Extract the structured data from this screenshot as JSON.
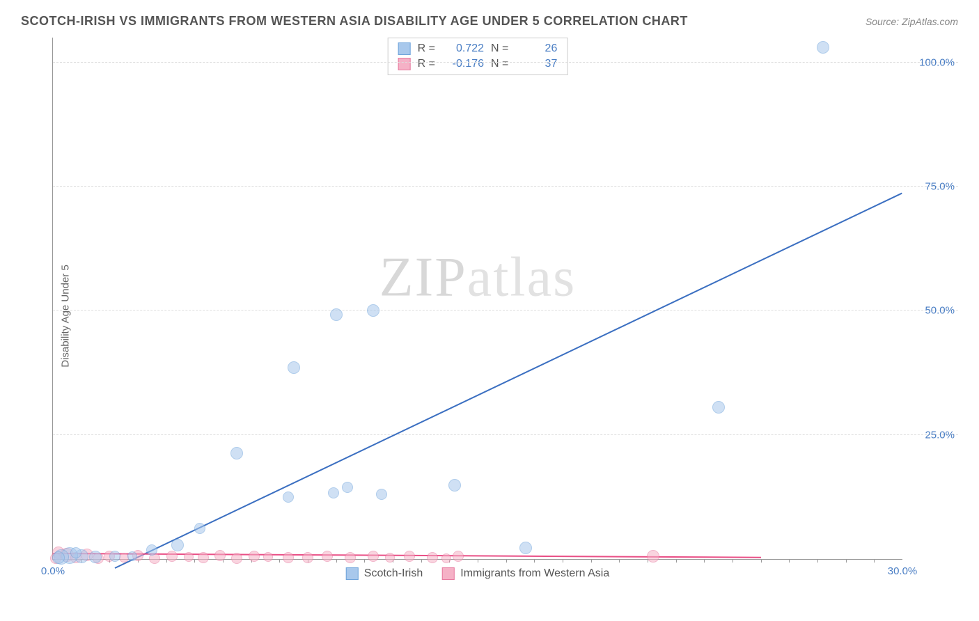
{
  "title": "SCOTCH-IRISH VS IMMIGRANTS FROM WESTERN ASIA DISABILITY AGE UNDER 5 CORRELATION CHART",
  "source_label": "Source:",
  "source_value": "ZipAtlas.com",
  "ylabel": "Disability Age Under 5",
  "watermark": {
    "part1": "ZIP",
    "part2": "atlas"
  },
  "chart": {
    "type": "scatter",
    "xlim": [
      0,
      30
    ],
    "ylim": [
      0,
      105
    ],
    "background_color": "#ffffff",
    "grid_color": "#dddddd",
    "axis_color": "#999999",
    "yticks": [
      {
        "v": 25,
        "label": "25.0%"
      },
      {
        "v": 50,
        "label": "50.0%"
      },
      {
        "v": 75,
        "label": "75.0%"
      },
      {
        "v": 100,
        "label": "100.0%"
      }
    ],
    "xticks": [
      {
        "v": 0,
        "label": "0.0%"
      },
      {
        "v": 30,
        "label": "30.0%"
      }
    ],
    "series": [
      {
        "name": "Scotch-Irish",
        "fill": "#a8c8ec",
        "stroke": "#6fa4db",
        "fill_opacity": 0.55,
        "marker_radius": 8,
        "r_value": "0.722",
        "n_value": "26",
        "trend": {
          "x1": 2.2,
          "y1": -2,
          "x2": 30,
          "y2": 73.5,
          "color": "#3b6fc1",
          "width": 2
        },
        "points": [
          {
            "x": 27.2,
            "y": 103,
            "r": 9
          },
          {
            "x": 23.5,
            "y": 30.5,
            "r": 9
          },
          {
            "x": 14.2,
            "y": 14.8,
            "r": 9
          },
          {
            "x": 11.3,
            "y": 50.0,
            "r": 9
          },
          {
            "x": 10.0,
            "y": 49.2,
            "r": 9
          },
          {
            "x": 10.4,
            "y": 14.5,
            "r": 8
          },
          {
            "x": 9.9,
            "y": 13.3,
            "r": 8
          },
          {
            "x": 11.6,
            "y": 13.0,
            "r": 8
          },
          {
            "x": 8.5,
            "y": 38.5,
            "r": 9
          },
          {
            "x": 8.3,
            "y": 12.5,
            "r": 8
          },
          {
            "x": 6.5,
            "y": 21.3,
            "r": 9
          },
          {
            "x": 5.2,
            "y": 6.2,
            "r": 8
          },
          {
            "x": 4.4,
            "y": 2.8,
            "r": 9
          },
          {
            "x": 16.7,
            "y": 2.2,
            "r": 9
          },
          {
            "x": 3.5,
            "y": 1.8,
            "r": 8
          },
          {
            "x": 2.2,
            "y": 0.5,
            "r": 8
          },
          {
            "x": 1.5,
            "y": 0.4,
            "r": 9
          },
          {
            "x": 1.0,
            "y": 0.5,
            "r": 10
          },
          {
            "x": 0.6,
            "y": 0.7,
            "r": 12
          },
          {
            "x": 0.3,
            "y": 0.4,
            "r": 11
          },
          {
            "x": 0.8,
            "y": 1.2,
            "r": 8
          },
          {
            "x": 2.8,
            "y": 0.6,
            "r": 7
          },
          {
            "x": 0.2,
            "y": 0.3,
            "r": 9
          }
        ]
      },
      {
        "name": "Immigrants from Western Asia",
        "fill": "#f5b1c6",
        "stroke": "#e77ba0",
        "fill_opacity": 0.55,
        "marker_radius": 8,
        "r_value": "-0.176",
        "n_value": "37",
        "trend": {
          "x1": 0,
          "y1": 1.0,
          "x2": 25,
          "y2": 0.2,
          "color": "#e94f86",
          "width": 2
        },
        "points": [
          {
            "x": 0.2,
            "y": 1.2,
            "r": 9
          },
          {
            "x": 0.5,
            "y": 0.8,
            "r": 10
          },
          {
            "x": 0.8,
            "y": 0.3,
            "r": 8
          },
          {
            "x": 1.2,
            "y": 0.9,
            "r": 9
          },
          {
            "x": 1.6,
            "y": 0.2,
            "r": 8
          },
          {
            "x": 2.0,
            "y": 0.5,
            "r": 8
          },
          {
            "x": 2.5,
            "y": 0.3,
            "r": 7
          },
          {
            "x": 3.0,
            "y": 0.7,
            "r": 8
          },
          {
            "x": 3.6,
            "y": 0.2,
            "r": 8
          },
          {
            "x": 4.2,
            "y": 0.5,
            "r": 8
          },
          {
            "x": 4.8,
            "y": 0.4,
            "r": 7
          },
          {
            "x": 5.3,
            "y": 0.3,
            "r": 8
          },
          {
            "x": 5.9,
            "y": 0.7,
            "r": 8
          },
          {
            "x": 6.5,
            "y": 0.2,
            "r": 8
          },
          {
            "x": 7.1,
            "y": 0.5,
            "r": 8
          },
          {
            "x": 7.6,
            "y": 0.4,
            "r": 7
          },
          {
            "x": 8.3,
            "y": 0.3,
            "r": 8
          },
          {
            "x": 9.0,
            "y": 0.3,
            "r": 8
          },
          {
            "x": 9.7,
            "y": 0.5,
            "r": 8
          },
          {
            "x": 10.5,
            "y": 0.3,
            "r": 8
          },
          {
            "x": 11.3,
            "y": 0.5,
            "r": 8
          },
          {
            "x": 11.9,
            "y": 0.3,
            "r": 7
          },
          {
            "x": 12.6,
            "y": 0.5,
            "r": 8
          },
          {
            "x": 13.4,
            "y": 0.3,
            "r": 8
          },
          {
            "x": 13.9,
            "y": 0.2,
            "r": 7
          },
          {
            "x": 14.3,
            "y": 0.5,
            "r": 8
          },
          {
            "x": 21.2,
            "y": 0.5,
            "r": 9
          },
          {
            "x": 0.1,
            "y": 0.2,
            "r": 8
          }
        ]
      }
    ]
  },
  "legend": {
    "items": [
      {
        "label": "Scotch-Irish",
        "fill": "#a8c8ec",
        "stroke": "#6fa4db"
      },
      {
        "label": "Immigrants from Western Asia",
        "fill": "#f5b1c6",
        "stroke": "#e77ba0"
      }
    ]
  }
}
